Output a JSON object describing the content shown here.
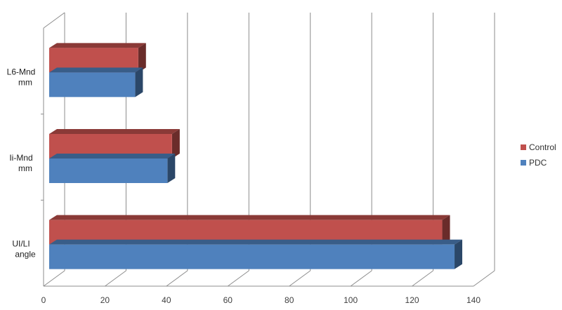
{
  "chart_data": {
    "type": "bar",
    "orientation": "horizontal",
    "style": "3d-clustered",
    "categories": [
      {
        "lines": [
          "L6-Mnd",
          "mm"
        ]
      },
      {
        "lines": [
          "Ii-Mnd",
          "mm"
        ]
      },
      {
        "lines": [
          "UI/LI",
          "angle"
        ]
      }
    ],
    "series": [
      {
        "name": "Control",
        "color": "#C0504D",
        "values": [
          29,
          40,
          128
        ]
      },
      {
        "name": "PDC",
        "color": "#4F81BD",
        "values": [
          28,
          38.5,
          132
        ]
      }
    ],
    "xlim": [
      0,
      140
    ],
    "xticks": [
      0,
      20,
      40,
      60,
      80,
      100,
      120,
      140
    ],
    "grid": true,
    "legend_position": "right"
  }
}
